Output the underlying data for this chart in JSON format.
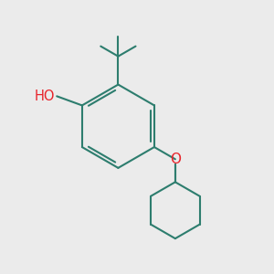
{
  "background_color": "#ebebeb",
  "bond_color": "#2d7d6e",
  "o_color": "#e8232a",
  "figsize": [
    3.0,
    3.0
  ],
  "dpi": 100
}
